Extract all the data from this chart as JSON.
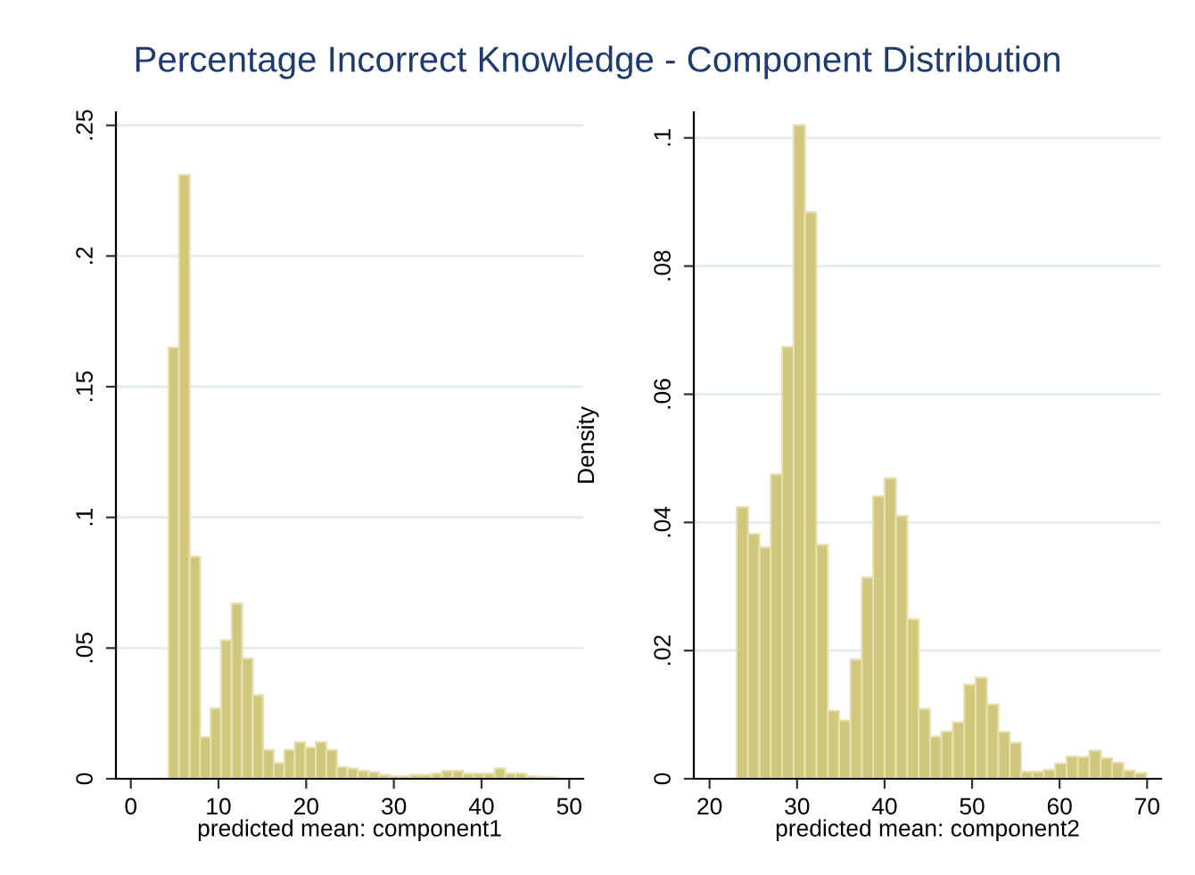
{
  "chart_data": [
    {
      "type": "histogram",
      "title": "Percentage Incorrect Knowledge - Component Distribution",
      "xlabel": "predicted mean: component1",
      "color": "#d0c67c",
      "bins": [
        4.3,
        5.5,
        6.7,
        7.9,
        9.1,
        10.3,
        11.5,
        12.7,
        13.9,
        15.1,
        16.3,
        17.5,
        18.7,
        19.9,
        21.1,
        22.3,
        23.5,
        24.7,
        25.9,
        27.1,
        28.3,
        29.5,
        30.7,
        31.9,
        33.1,
        34.3,
        35.5,
        36.7,
        37.9,
        39.1,
        40.3,
        41.5,
        42.7,
        43.9,
        45.1,
        46.3,
        47.5,
        48.7
      ],
      "values": [
        0.165,
        0.231,
        0.085,
        0.016,
        0.027,
        0.053,
        0.067,
        0.046,
        0.032,
        0.011,
        0.006,
        0.011,
        0.014,
        0.012,
        0.014,
        0.011,
        0.0045,
        0.004,
        0.003,
        0.0025,
        0.0015,
        0.001,
        0.001,
        0.0015,
        0.0015,
        0.002,
        0.003,
        0.003,
        0.002,
        0.002,
        0.002,
        0.004,
        0.002,
        0.002,
        0.001,
        0.0007,
        0.0005
      ],
      "xlim": [
        -1.7,
        51.6
      ],
      "ylim": [
        0,
        0.255
      ],
      "xticks": [
        0,
        10,
        20,
        30,
        40,
        50
      ],
      "yticks": [
        0,
        {
          "value": 0.05,
          "label": ".05"
        },
        {
          "value": 0.1,
          "label": ".1"
        },
        {
          "value": 0.15,
          "label": ".15"
        },
        {
          "value": 0.2,
          "label": ".2"
        },
        {
          "value": 0.25,
          "label": ".25"
        }
      ],
      "grid": "y"
    },
    {
      "type": "histogram",
      "ylabel": "Density",
      "xlabel": "predicted mean: component2",
      "color": "#d0c67c",
      "bins": [
        23.1,
        24.4,
        25.7,
        27.0,
        28.3,
        29.6,
        30.9,
        32.2,
        33.5,
        34.8,
        36.1,
        37.4,
        38.7,
        40.0,
        41.3,
        42.6,
        43.9,
        45.2,
        46.5,
        47.8,
        49.1,
        50.4,
        51.7,
        53.0,
        54.3,
        55.6,
        56.9,
        58.2,
        59.5,
        60.8,
        62.1,
        63.4,
        64.7,
        66.0,
        67.3,
        68.6,
        69.9
      ],
      "values": [
        0.0424,
        0.0382,
        0.0361,
        0.0475,
        0.0674,
        0.102,
        0.0884,
        0.0365,
        0.0106,
        0.0091,
        0.0186,
        0.0314,
        0.0441,
        0.0469,
        0.041,
        0.0249,
        0.0109,
        0.0066,
        0.0074,
        0.0088,
        0.0147,
        0.0158,
        0.0116,
        0.0073,
        0.0056,
        0.0011,
        0.0011,
        0.0014,
        0.0024,
        0.0035,
        0.0034,
        0.0044,
        0.0032,
        0.0025,
        0.0013,
        0.0009
      ],
      "xlim": [
        18.2,
        71.6
      ],
      "ylim": [
        0,
        0.104
      ],
      "xticks": [
        20,
        30,
        40,
        50,
        60,
        70
      ],
      "yticks": [
        0,
        {
          "value": 0.02,
          "label": ".02"
        },
        {
          "value": 0.04,
          "label": ".04"
        },
        {
          "value": 0.06,
          "label": ".06"
        },
        {
          "value": 0.08,
          "label": ".08"
        },
        {
          "value": 0.1,
          "label": ".1"
        }
      ],
      "grid": "y"
    }
  ]
}
